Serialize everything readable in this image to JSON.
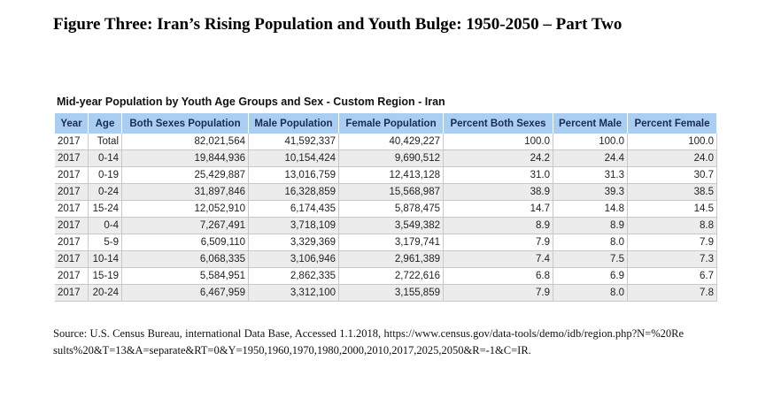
{
  "figure_title": "Figure Three: Iran’s Rising Population and Youth Bulge: 1950-2050 – Part Two",
  "table": {
    "title": "Mid-year Population by Youth Age Groups and Sex - Custom Region - Iran",
    "headers": [
      "Year",
      "Age",
      "Both Sexes Population",
      "Male Population",
      "Female Population",
      "Percent Both Sexes",
      "Percent Male",
      "Percent Female"
    ],
    "rows": [
      [
        "2017",
        "Total",
        "82,021,564",
        "41,592,337",
        "40,429,227",
        "100.0",
        "100.0",
        "100.0"
      ],
      [
        "2017",
        "0-14",
        "19,844,936",
        "10,154,424",
        "9,690,512",
        "24.2",
        "24.4",
        "24.0"
      ],
      [
        "2017",
        "0-19",
        "25,429,887",
        "13,016,759",
        "12,413,128",
        "31.0",
        "31.3",
        "30.7"
      ],
      [
        "2017",
        "0-24",
        "31,897,846",
        "16,328,859",
        "15,568,987",
        "38.9",
        "39.3",
        "38.5"
      ],
      [
        "2017",
        "15-24",
        "12,052,910",
        "6,174,435",
        "5,878,475",
        "14.7",
        "14.8",
        "14.5"
      ],
      [
        "2017",
        "0-4",
        "7,267,491",
        "3,718,109",
        "3,549,382",
        "8.9",
        "8.9",
        "8.8"
      ],
      [
        "2017",
        "5-9",
        "6,509,110",
        "3,329,369",
        "3,179,741",
        "7.9",
        "8.0",
        "7.9"
      ],
      [
        "2017",
        "10-14",
        "6,068,335",
        "3,106,946",
        "2,961,389",
        "7.4",
        "7.5",
        "7.3"
      ],
      [
        "2017",
        "15-19",
        "5,584,951",
        "2,862,335",
        "2,722,616",
        "6.8",
        "6.9",
        "6.7"
      ],
      [
        "2017",
        "20-24",
        "6,467,959",
        "3,312,100",
        "3,155,859",
        "7.9",
        "8.0",
        "7.8"
      ]
    ]
  },
  "source": "Source: U.S. Census Bureau, international Data Base, Accessed 1.1.2018, https://www.census.gov/data-tools/demo/idb/region.php?N=%20Results%20&T=13&A=separate&RT=0&Y=1950,1960,1970,1980,2000,2010,2017,2025,2050&R=-1&C=IR."
}
